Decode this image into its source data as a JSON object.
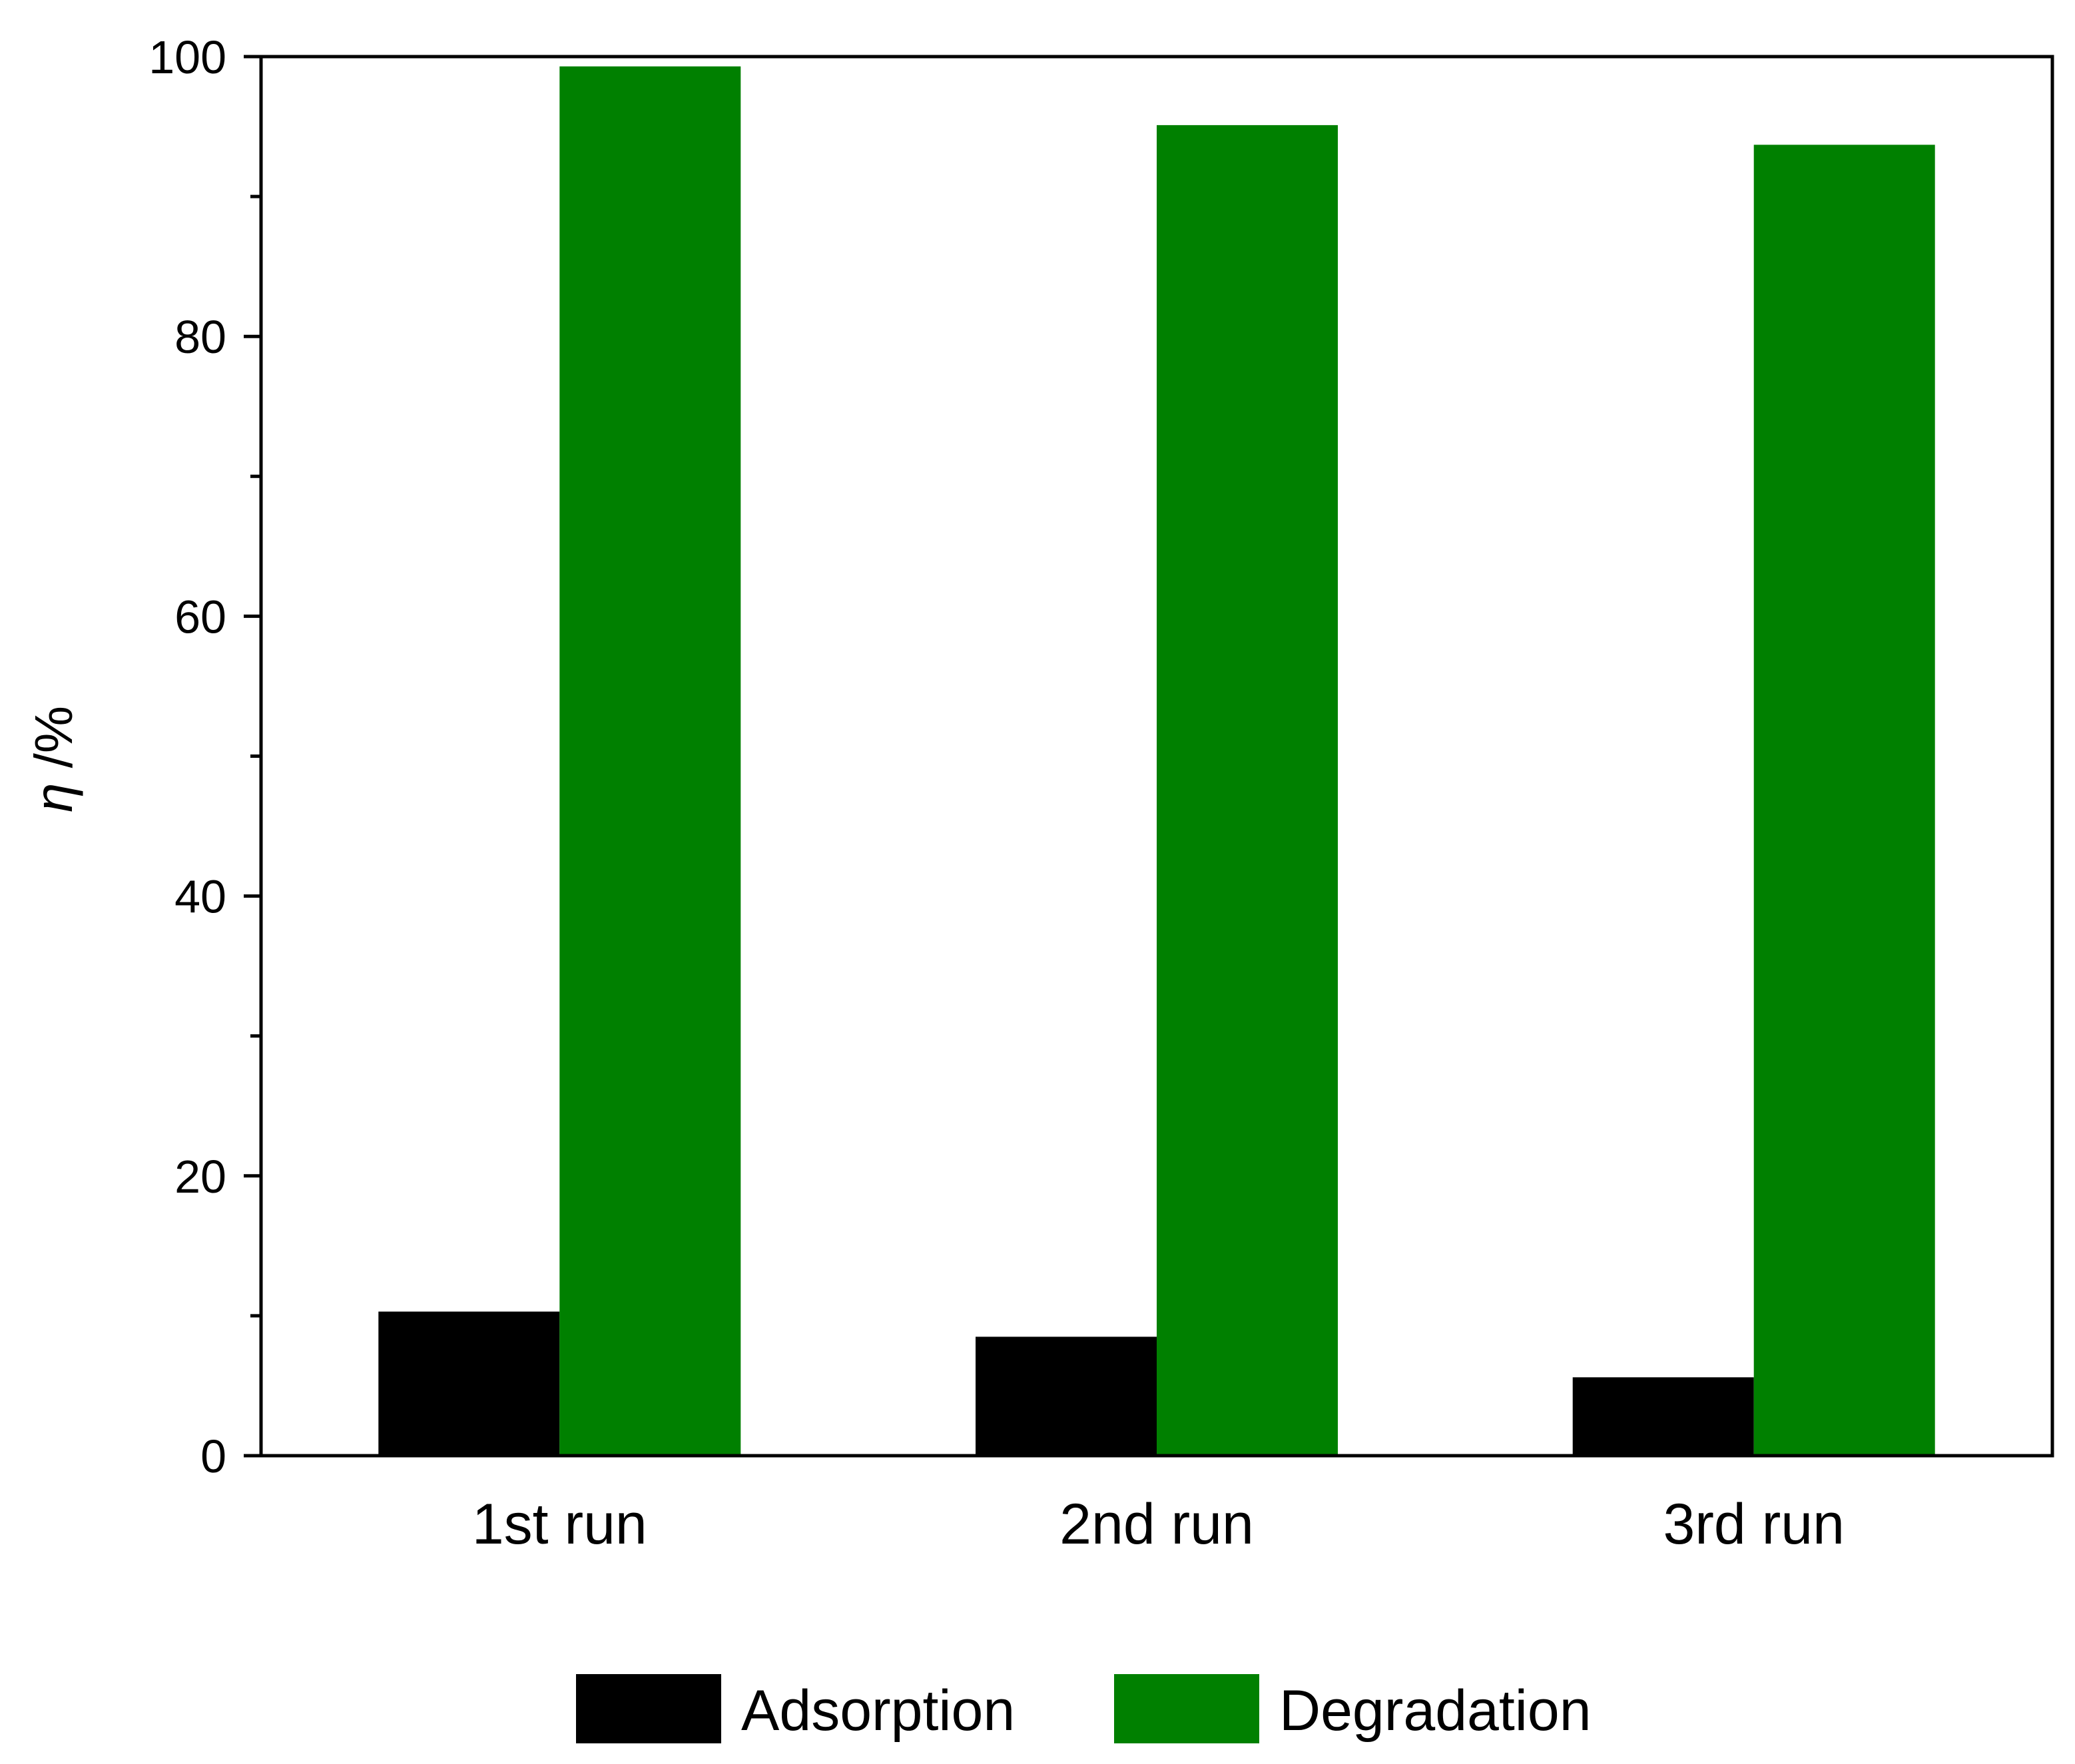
{
  "chart_data": {
    "type": "bar",
    "title": "",
    "xlabel": "",
    "ylabel_symbol": "η",
    "ylabel_unit": " /%",
    "ylim": [
      0,
      100
    ],
    "yticks": [
      0,
      20,
      40,
      60,
      80,
      100
    ],
    "minor_step": 10,
    "categories": [
      "1st run",
      "2nd run",
      "3rd run"
    ],
    "series": [
      {
        "name": "Adsorption",
        "color": "#000000",
        "values": [
          10.3,
          8.5,
          5.6
        ]
      },
      {
        "name": "Degradation",
        "color": "#008000",
        "values": [
          99.3,
          95.1,
          93.7
        ]
      }
    ],
    "legend_position": "bottom-center",
    "grid": false
  }
}
